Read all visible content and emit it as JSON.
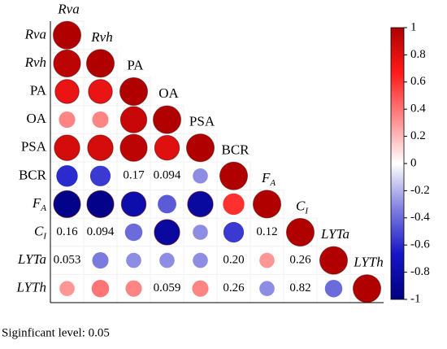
{
  "chart_data": {
    "type": "correlogram",
    "variables": [
      {
        "text": "Rva",
        "italic": true
      },
      {
        "text": "Rvh",
        "italic": true
      },
      {
        "text": "PA"
      },
      {
        "text": "OA"
      },
      {
        "text": "PSA"
      },
      {
        "text": "BCR"
      },
      {
        "text": "F",
        "sub": "A",
        "italic": true
      },
      {
        "text": "C",
        "sub": "I",
        "italic": true
      },
      {
        "text": "LYTa",
        "italic": true
      },
      {
        "text": "LYTh",
        "italic": true
      }
    ],
    "values": [
      [
        1
      ],
      [
        0.95,
        1
      ],
      [
        0.75,
        0.75,
        1
      ],
      [
        0.35,
        0.35,
        0.9,
        1
      ],
      [
        0.85,
        0.85,
        0.95,
        0.8,
        1
      ],
      [
        -0.6,
        -0.55,
        null,
        null,
        -0.3,
        1
      ],
      [
        -0.95,
        -0.95,
        -0.8,
        -0.45,
        -0.85,
        0.6,
        1
      ],
      [
        null,
        null,
        -0.4,
        -0.85,
        -0.3,
        -0.55,
        null,
        1
      ],
      [
        null,
        -0.35,
        -0.3,
        -0.3,
        -0.3,
        null,
        0.3,
        null,
        1
      ],
      [
        0.3,
        0.4,
        0.35,
        null,
        0.35,
        null,
        -0.3,
        null,
        -0.4,
        1
      ]
    ],
    "p_values": [
      [
        null
      ],
      [
        null,
        null
      ],
      [
        null,
        null,
        null
      ],
      [
        null,
        null,
        null,
        null
      ],
      [
        null,
        null,
        null,
        null,
        null
      ],
      [
        null,
        null,
        0.17,
        0.094,
        null,
        null
      ],
      [
        null,
        null,
        null,
        null,
        null,
        null,
        null
      ],
      [
        0.16,
        0.094,
        null,
        null,
        null,
        null,
        0.12,
        null
      ],
      [
        0.053,
        null,
        null,
        null,
        null,
        {
          "value": 0.2,
          "label": "0.20"
        },
        null,
        0.26,
        null
      ],
      [
        null,
        null,
        null,
        0.059,
        null,
        0.26,
        null,
        0.82,
        null,
        null
      ]
    ],
    "colormap": [
      "#00007F",
      "#1515C8",
      "#8080E0",
      "#FFFFFF",
      "#FF8A8A",
      "#FF1A1A",
      "#B00000"
    ],
    "colorbar_lim": [
      -1,
      1
    ],
    "colorbar_ticks": [
      1,
      0.8,
      0.6,
      0.4,
      0.2,
      0,
      -0.2,
      -0.4,
      -0.6,
      -0.8,
      -1
    ],
    "footnote": "Siginficant level: 0.05"
  }
}
